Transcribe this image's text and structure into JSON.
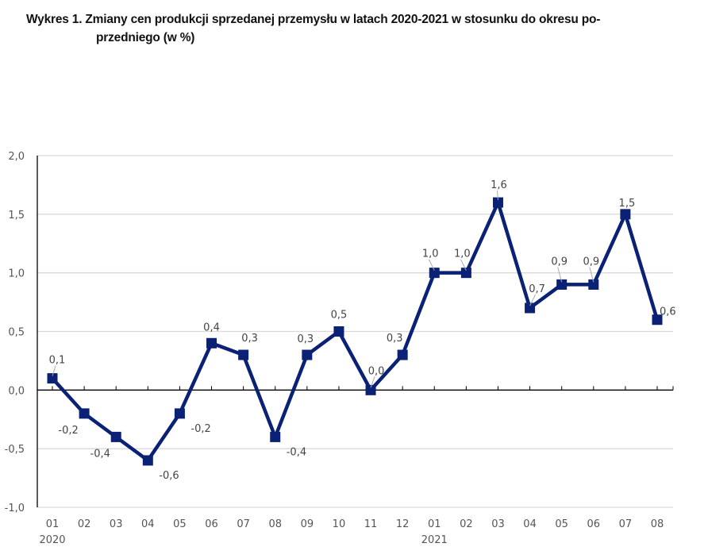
{
  "chart_data": {
    "type": "line",
    "title_line1": "Wykres 1. Zmiany cen produkcji sprzedanej przemysłu w latach 2020-2021 w stosunku do okresu po-",
    "title_line2": "przedniego (w %)",
    "xlabel": "",
    "ylabel": "",
    "ylim": [
      -1.0,
      2.0
    ],
    "yticks": [
      {
        "value": 2.0,
        "label": "2,0"
      },
      {
        "value": 1.5,
        "label": "1,5"
      },
      {
        "value": 1.0,
        "label": "1,0"
      },
      {
        "value": 0.5,
        "label": "0,5"
      },
      {
        "value": 0.0,
        "label": "0,0"
      },
      {
        "value": -0.5,
        "label": "-0,5"
      },
      {
        "value": -1.0,
        "label": "-1,0"
      }
    ],
    "grid": true,
    "categories": [
      "01",
      "02",
      "03",
      "04",
      "05",
      "06",
      "07",
      "08",
      "09",
      "10",
      "11",
      "12",
      "01",
      "02",
      "03",
      "04",
      "05",
      "06",
      "07",
      "08"
    ],
    "year_labels": [
      {
        "index": 0,
        "label": "2020"
      },
      {
        "index": 12,
        "label": "2021"
      }
    ],
    "series": [
      {
        "name": "Zmiany cen produkcji sprzedanej przemysłu",
        "color": "#0a2175",
        "values": [
          0.1,
          -0.2,
          -0.4,
          -0.6,
          -0.2,
          0.4,
          0.3,
          -0.4,
          0.3,
          0.5,
          0.0,
          0.3,
          1.0,
          1.0,
          1.6,
          0.7,
          0.9,
          0.9,
          1.5,
          0.6
        ],
        "labels": [
          "0,1",
          "-0,2",
          "-0,4",
          "-0,6",
          "-0,2",
          "0,4",
          "0,3",
          "-0,4",
          "0,3",
          "0,5",
          "0,0",
          "0,3",
          "1,0",
          "1,0",
          "1,6",
          "0,7",
          "0,9",
          "0,9",
          "1,5",
          "0,6"
        ]
      }
    ],
    "colors": {
      "line": "#0a2175",
      "grid": "#d9d9d9",
      "axis": "#000000",
      "text": "#555555"
    }
  }
}
